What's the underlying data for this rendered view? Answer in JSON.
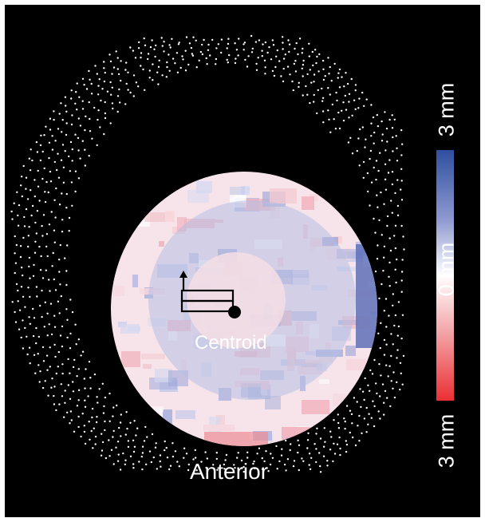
{
  "figure": {
    "label_centroid": "Centroid",
    "label_anterior": "Anterior",
    "colorbar": {
      "top_label": "3 mm",
      "mid_label": "0 mm",
      "bottom_label": "3 mm",
      "stops": [
        "#2f4f9f",
        "#8f9ad0",
        "#ffffff",
        "#f3a8ab",
        "#ea2f33"
      ]
    },
    "colors": {
      "background": "#000000",
      "point_cloud": "#ffffff",
      "disc_base": "#f6e4ea",
      "blue_patch": "#b7bde2",
      "red_patch": "#f4bcc4",
      "marker": "#000000"
    }
  }
}
